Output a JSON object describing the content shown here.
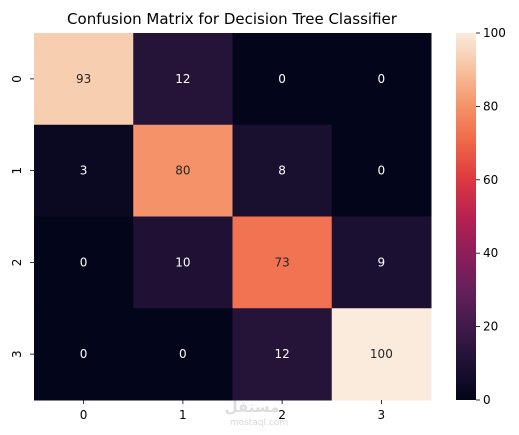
{
  "chart_data": {
    "type": "heatmap",
    "title": "Confusion Matrix for Decision Tree Classifier",
    "xlabel": "",
    "ylabel": "",
    "x_categories": [
      "0",
      "1",
      "2",
      "3"
    ],
    "y_categories": [
      "0",
      "1",
      "2",
      "3"
    ],
    "values": [
      [
        93,
        12,
        0,
        0
      ],
      [
        3,
        80,
        8,
        0
      ],
      [
        0,
        10,
        73,
        9
      ],
      [
        0,
        0,
        12,
        100
      ]
    ],
    "colorbar": {
      "range": [
        0,
        100
      ],
      "ticks": [
        "0",
        "20",
        "40",
        "60",
        "80",
        "100"
      ],
      "colormap": "rocket"
    },
    "grid": false
  },
  "watermark": {
    "text": "مستقل",
    "subtext": "mostaql.com"
  }
}
